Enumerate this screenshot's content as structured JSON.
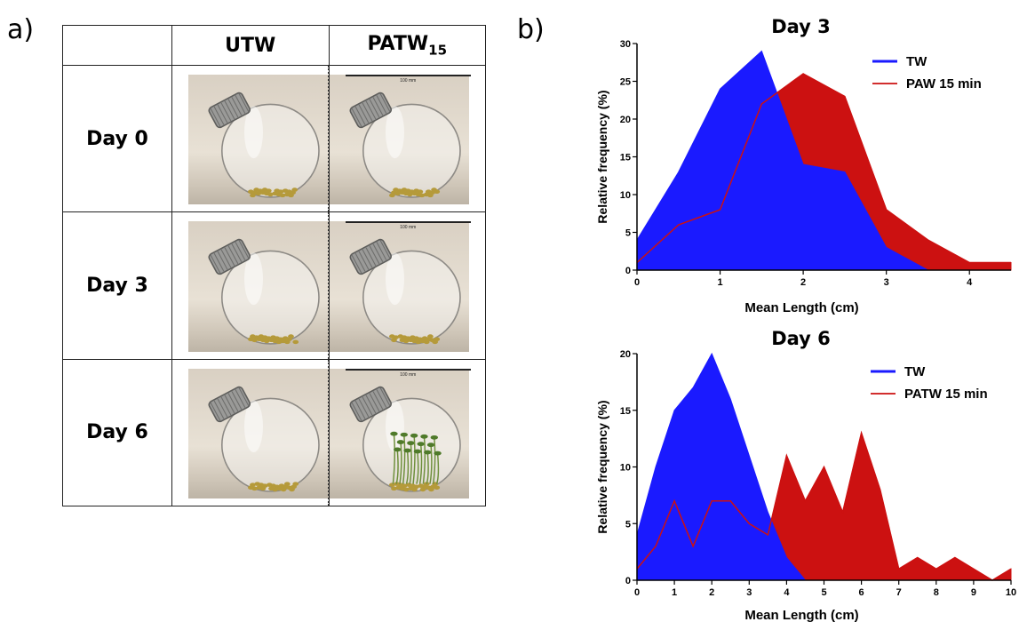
{
  "panels": {
    "a_label": "a)",
    "b_label": "b)"
  },
  "table": {
    "headers": [
      "",
      "UTW",
      "PATW",
      "15"
    ],
    "rows": [
      {
        "label": "Day 0",
        "scale_text": "100 mm"
      },
      {
        "label": "Day 3",
        "scale_text": "100 mm"
      },
      {
        "label": "Day 6",
        "scale_text": "100 mm"
      }
    ]
  },
  "colors": {
    "tw": "#1a1aff",
    "patw": "#cc1111",
    "axis": "#000000"
  },
  "chart_data": [
    {
      "type": "area",
      "title": "Day 3",
      "xlabel": "Mean Length (cm)",
      "ylabel": "Relative frequency (%)",
      "xlim": [
        0,
        4.5
      ],
      "ylim": [
        0,
        30
      ],
      "xticks": [
        0,
        1,
        2,
        3,
        4
      ],
      "yticks": [
        0,
        5,
        10,
        15,
        20,
        25,
        30
      ],
      "legend_position": "top-right",
      "series": [
        {
          "name": "TW",
          "style": "filled",
          "x": [
            0,
            0.5,
            1,
            1.5,
            2,
            2.5,
            3,
            3.5,
            4,
            4.5
          ],
          "y": [
            4,
            13,
            24,
            29,
            14,
            13,
            3,
            0,
            0,
            0
          ]
        },
        {
          "name": "PAW 15 min",
          "style": "filled",
          "x": [
            0,
            0.5,
            1,
            1.5,
            2,
            2.5,
            3,
            3.5,
            4,
            4.5
          ],
          "y": [
            1,
            6,
            8,
            22,
            26,
            23,
            8,
            4,
            1,
            1
          ]
        }
      ]
    },
    {
      "type": "area",
      "title": "Day 6",
      "xlabel": "Mean Length (cm)",
      "ylabel": "Relative frequency (%)",
      "xlim": [
        0,
        10
      ],
      "ylim": [
        0,
        20
      ],
      "xticks": [
        0,
        1,
        2,
        3,
        4,
        5,
        6,
        7,
        8,
        9,
        10
      ],
      "yticks": [
        0,
        5,
        10,
        15,
        20
      ],
      "legend_position": "top-right",
      "series": [
        {
          "name": "TW",
          "style": "filled",
          "x": [
            0,
            0.5,
            1,
            1.5,
            2,
            2.5,
            3,
            3.5,
            4,
            4.5,
            5
          ],
          "y": [
            4,
            10,
            15,
            17,
            20,
            16,
            11,
            6,
            2,
            0,
            0
          ]
        },
        {
          "name": "PATW 15 min",
          "style": "filled",
          "x": [
            0,
            0.5,
            1,
            1.5,
            2,
            2.5,
            3,
            3.5,
            4,
            4.5,
            5,
            5.5,
            6,
            6.5,
            7,
            7.5,
            8,
            8.5,
            9,
            9.5,
            10
          ],
          "y": [
            1,
            3,
            7,
            3,
            7,
            7,
            5,
            4,
            11,
            7,
            10,
            6,
            13,
            8,
            1,
            2,
            1,
            2,
            1,
            0,
            1
          ]
        }
      ]
    }
  ]
}
